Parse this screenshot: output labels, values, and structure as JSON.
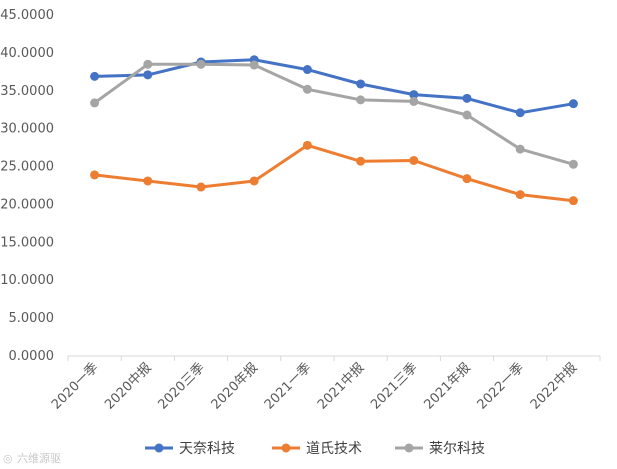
{
  "chart_data": {
    "type": "line",
    "title": "",
    "xlabel": "",
    "ylabel": "",
    "categories": [
      "2020一季",
      "2020中报",
      "2020三季",
      "2020年报",
      "2021一季",
      "2021中报",
      "2021三季",
      "2021年报",
      "2022一季",
      "2022中报"
    ],
    "ylim": [
      0,
      45
    ],
    "yticks": [
      "0.0000",
      "5.0000",
      "10.0000",
      "15.0000",
      "20.0000",
      "25.0000",
      "30.0000",
      "35.0000",
      "40.0000",
      "45.0000"
    ],
    "grid": false,
    "legend_position": "bottom",
    "series": [
      {
        "name": "天奈科技",
        "color": "#4472c4",
        "values": [
          36.9,
          37.1,
          38.8,
          39.1,
          37.8,
          35.9,
          34.5,
          34.0,
          32.1,
          33.3
        ]
      },
      {
        "name": "道氏技术",
        "color": "#ed7d31",
        "values": [
          23.9,
          23.1,
          22.3,
          23.1,
          27.8,
          25.7,
          25.8,
          23.4,
          21.3,
          20.5
        ]
      },
      {
        "name": "莱尔科技",
        "color": "#a5a5a5",
        "values": [
          33.4,
          38.5,
          38.5,
          38.4,
          35.2,
          33.8,
          33.6,
          31.8,
          27.3,
          25.3
        ]
      }
    ]
  },
  "watermark": {
    "text": "六维源驱",
    "icon": "weibo-icon"
  }
}
